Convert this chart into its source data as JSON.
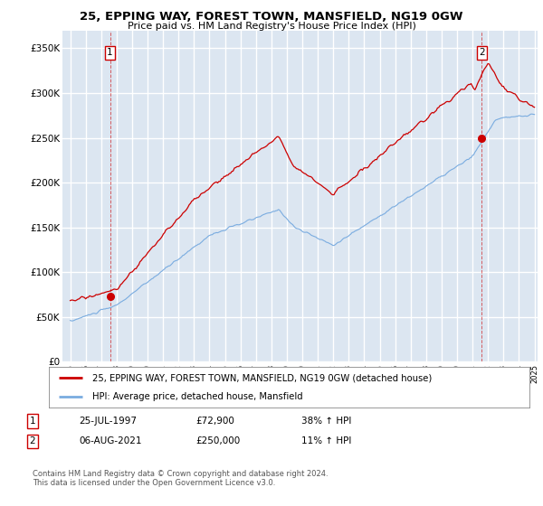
{
  "title": "25, EPPING WAY, FOREST TOWN, MANSFIELD, NG19 0GW",
  "subtitle": "Price paid vs. HM Land Registry's House Price Index (HPI)",
  "ylabel_ticks": [
    "£0",
    "£50K",
    "£100K",
    "£150K",
    "£200K",
    "£250K",
    "£300K",
    "£350K"
  ],
  "ytick_vals": [
    0,
    50000,
    100000,
    150000,
    200000,
    250000,
    300000,
    350000
  ],
  "ylim": [
    0,
    370000
  ],
  "xlim_start": 1994.5,
  "xlim_end": 2025.2,
  "bg_color": "#dce6f1",
  "grid_color": "#ffffff",
  "red_color": "#cc0000",
  "blue_color": "#7aace0",
  "legend_label_red": "25, EPPING WAY, FOREST TOWN, MANSFIELD, NG19 0GW (detached house)",
  "legend_label_blue": "HPI: Average price, detached house, Mansfield",
  "marker1_x": 1997.57,
  "marker1_y": 72900,
  "marker2_x": 2021.6,
  "marker2_y": 250000,
  "annotation1": [
    "1",
    "25-JUL-1997",
    "£72,900",
    "38% ↑ HPI"
  ],
  "annotation2": [
    "2",
    "06-AUG-2021",
    "£250,000",
    "11% ↑ HPI"
  ],
  "footer": "Contains HM Land Registry data © Crown copyright and database right 2024.\nThis data is licensed under the Open Government Licence v3.0."
}
